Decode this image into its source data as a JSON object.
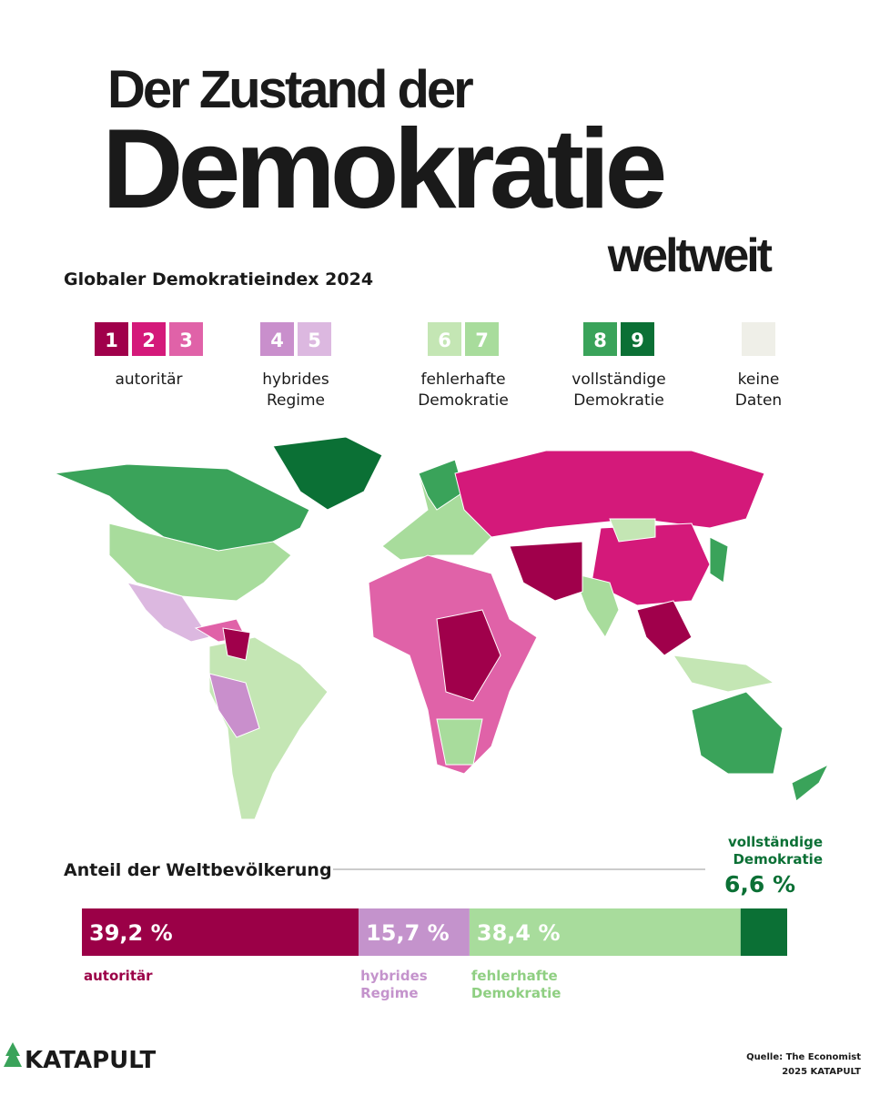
{
  "header": {
    "title_lines": [
      "Der Zustand der",
      "Demokratie",
      "weltweit"
    ],
    "subtitle": "Globaler Demokratieindex 2024"
  },
  "legend": [
    {
      "keys": [
        "1",
        "2",
        "3"
      ],
      "colors": [
        "#a0004b",
        "#d4197a",
        "#e062a8"
      ],
      "label_lines": [
        "autoritär"
      ]
    },
    {
      "keys": [
        "4",
        "5"
      ],
      "colors": [
        "#c98fcc",
        "#dcb8e0"
      ],
      "label_lines": [
        "hybrides",
        "Regime"
      ]
    },
    {
      "keys": [
        "6",
        "7"
      ],
      "colors": [
        "#c4e6b4",
        "#a8dc9c"
      ],
      "label_lines": [
        "fehlerhafte",
        "Demokratie"
      ]
    },
    {
      "keys": [
        "8",
        "9"
      ],
      "colors": [
        "#3aa35a",
        "#0b7035"
      ],
      "label_lines": [
        "vollständige",
        "Demokratie"
      ]
    },
    {
      "keys": [],
      "colors": [
        "#efefe8"
      ],
      "label_lines": [
        "keine",
        "Daten"
      ]
    }
  ],
  "population": {
    "title": "Anteil der Weltbevölkerung",
    "segments": [
      {
        "name_lines": [
          "autoritär"
        ],
        "value": 39.2,
        "value_label": "39,2 %",
        "color": "#9b0047",
        "label_color": "#9b0047"
      },
      {
        "name_lines": [
          "hybrides",
          "Regime"
        ],
        "value": 15.7,
        "value_label": "15,7 %",
        "color": "#c493cc",
        "label_color": "#c493cc"
      },
      {
        "name_lines": [
          "fehlerhafte",
          "Demokratie"
        ],
        "value": 38.4,
        "value_label": "38,4 %",
        "color": "#a8dc9c",
        "label_color": "#8fcf82"
      },
      {
        "name_lines": [
          "vollständige",
          "Demokratie"
        ],
        "value": 6.6,
        "value_label": "6,6 %",
        "color": "#0b7035",
        "label_color": "#0b7035"
      }
    ]
  },
  "footer": {
    "logo": "KATAPULT",
    "source": "Quelle: The Economist",
    "copyright": "2025 KATAPULT"
  }
}
